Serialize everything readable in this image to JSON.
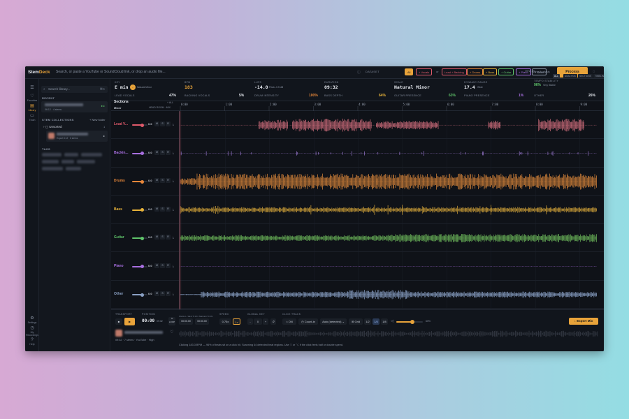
{
  "app": {
    "logo_prefix": "Stem",
    "logo_accent": "Deck",
    "search_placeholder": "Search, or paste a YouTube or SoundCloud link, or drop an audio file...",
    "dataset_label": "DATASET",
    "filter_chips": [
      {
        "label": "All",
        "color": "#e8a33a",
        "active": true
      },
      {
        "label": "+ Vocals",
        "color": "#e05a6b"
      },
      {
        "label": "or"
      },
      {
        "label": "Lead + Backing",
        "color": "#e05a6b"
      },
      {
        "label": "+ Drums",
        "color": "#e8873a"
      },
      {
        "label": "+ Bass",
        "color": "#e8b33a"
      },
      {
        "label": "+ Guitar",
        "color": "#5fc46a"
      },
      {
        "label": "+ Piano",
        "color": "#a86fe0"
      },
      {
        "label": "+ Other",
        "color": "#8a93a3"
      }
    ],
    "song_analysis_label": "Song Analysis",
    "process_label": "Process",
    "colors": {
      "accent": "#e8a33a",
      "bg": "#0f1218",
      "panel": "#13171e"
    }
  },
  "rail": [
    {
      "icon": "menu-icon",
      "label": ""
    },
    {
      "icon": "heart-icon",
      "label": "Favorites"
    },
    {
      "icon": "library-icon",
      "label": "Library"
    },
    {
      "icon": "trash-icon",
      "label": "Trash"
    },
    {
      "icon": "settings-icon",
      "label": "Settings"
    },
    {
      "icon": "recent-icon",
      "label": "My Recordings"
    },
    {
      "icon": "help-icon",
      "label": "Help"
    }
  ],
  "library": {
    "search_placeholder": "Search library...",
    "shortcut": "⌘K",
    "recent_label": "RECENT",
    "recent_item_meta": "06:12 · 4 stems",
    "collections_label": "STEM COLLECTIONS",
    "new_folder_label": "+ New folder",
    "folder_name": "Unsorted",
    "folder_item_meta": "Export 6:12 · 6 stems",
    "tags_label": "TAGS"
  },
  "metrics": {
    "top": [
      {
        "label": "KEY",
        "value": "E min",
        "sub": "Natural Minor"
      },
      {
        "label": "BPM",
        "value": "183",
        "color": "#e8a33a"
      },
      {
        "label": "LUFS",
        "value": "-14.0",
        "sub": "Peak -0.5 dB"
      },
      {
        "label": "DURATION",
        "value": "09:32"
      },
      {
        "label": "SCALE",
        "value": "Natural Minor"
      },
      {
        "label": "DYNAMIC RANGE",
        "value": "17.4",
        "sub": "Wide"
      },
      {
        "label": "TEMPO STABILITY",
        "value": "96%",
        "sub": "Very Stable",
        "color": "#5fc46a"
      }
    ],
    "tabs": [
      "ALL",
      "ANALYSIS",
      "SECTIONS",
      "TIMELINE"
    ],
    "view_label": "VIEW BY",
    "rows": [
      {
        "label": "LEAD VOCALS",
        "pct": "47%",
        "color": "#e6e9ef"
      },
      {
        "label": "BACKING VOCALS",
        "pct": "5%",
        "color": "#e6e9ef"
      },
      {
        "label": "DRUM INTENSITY",
        "pct": "100%",
        "color": "#e8873a"
      },
      {
        "label": "BASS DEPTH",
        "pct": "64%",
        "color": "#e8b33a"
      },
      {
        "label": "GUITAR PRESENCE",
        "pct": "63%",
        "color": "#5fc46a"
      },
      {
        "label": "PIANO PRESENCE",
        "pct": "1%",
        "color": "#a86fe0"
      },
      {
        "label": "OTHER",
        "pct": "26%",
        "color": "#e6e9ef"
      }
    ]
  },
  "mixer": {
    "sections_label": "Sections",
    "mixer_label": "Mixer",
    "all_label": "+ ALL",
    "headroom_label": "HEAD ROOM  ·  MIX",
    "timeline": [
      "0:00",
      "1:00",
      "2:00",
      "3:00",
      "4:00",
      "5:00",
      "6:00",
      "7:00",
      "8:00",
      "9:00"
    ],
    "tracks": [
      {
        "name": "Lead V...",
        "color": "#e05a6b",
        "wave_color": "#d6707f",
        "vol": "0.0",
        "knob": 0.66,
        "profile": "lead"
      },
      {
        "name": "Backin...",
        "color": "#a86fe0",
        "wave_color": "#9a78d0",
        "vol": "0.0",
        "knob": 0.66,
        "profile": "backing"
      },
      {
        "name": "Drums",
        "color": "#e8873a",
        "wave_color": "#e08a3c",
        "vol": "0.0",
        "knob": 0.66,
        "profile": "drums"
      },
      {
        "name": "Bass",
        "color": "#e8b33a",
        "wave_color": "#d9a83a",
        "vol": "0.0",
        "knob": 0.66,
        "profile": "bass"
      },
      {
        "name": "Guitar",
        "color": "#5fc46a",
        "wave_color": "#6fbd5c",
        "vol": "0.0",
        "knob": 0.66,
        "profile": "guitar"
      },
      {
        "name": "Piano",
        "color": "#a86fe0",
        "wave_color": "#a86fe0",
        "vol": "0.0",
        "knob": 0.66,
        "profile": "piano"
      },
      {
        "name": "Other",
        "color": "#8aa0c4",
        "wave_color": "#8ea6cc",
        "vol": "0.0",
        "knob": 0.66,
        "profile": "other"
      }
    ],
    "buttons": [
      "M",
      "S",
      "R"
    ]
  },
  "transport": {
    "transport_label": "TRANSPORT",
    "position_label": "POSITION",
    "loop_label": "LOOP",
    "loop_range_label": "SMALL SECTION SELECTION",
    "speed_label": "SPEED",
    "global_key_label": "GLOBAL KEY",
    "click_track_label": "CLICK TRACK",
    "position": "00:00",
    "position_total": "09:32",
    "loop_start": "00:00.00",
    "loop_end": "00:00.00",
    "speed_values": [
      "0.75x",
      "1x"
    ],
    "key_value": "0",
    "key_sign": "-",
    "key_plus": "+",
    "key_reset": "↺",
    "click_on": "ON",
    "count_in": "Count-in",
    "auto_detect": "Auto (detected)",
    "grid_label": "Grid",
    "grid_values": [
      "1/2",
      "1/4",
      "1/8"
    ],
    "volume_label": "60%",
    "export_label": "Export Mix",
    "now_playing_meta": "09:32 · 7 stems · YouTube · High",
    "status_text": "Clicking 183.3 BPM — 96% of beats sit on a click hit. Scanning 44 detected beat regions. Use ⇧ or ⌥ if the click feels half or double speed."
  }
}
